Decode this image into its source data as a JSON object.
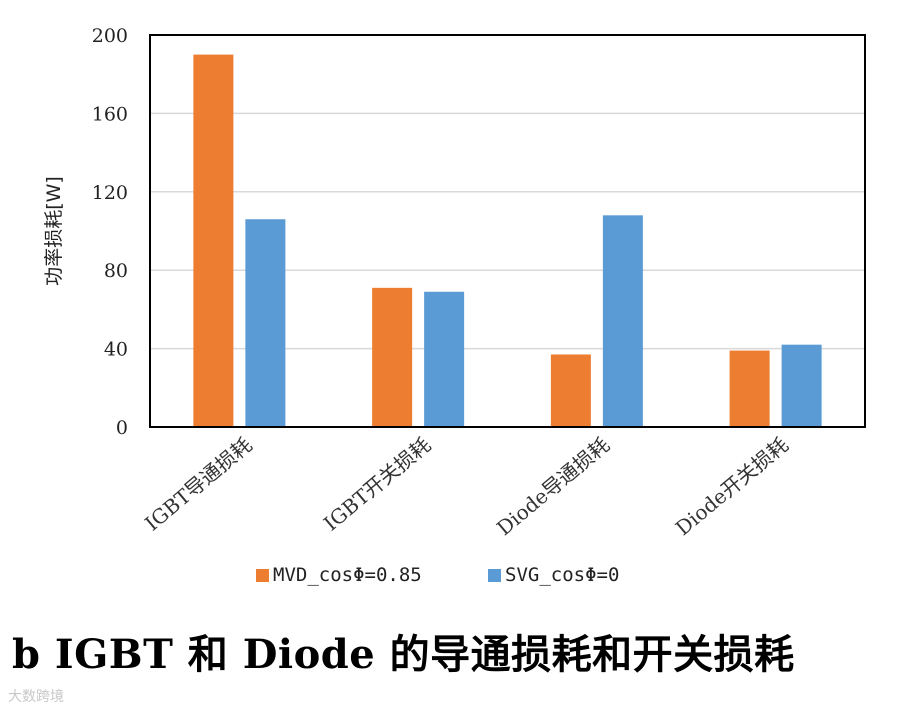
{
  "chart_data": {
    "type": "bar",
    "categories": [
      "IGBT导通损耗",
      "IGBT开关损耗",
      "Diode导通损耗",
      "Diode开关损耗"
    ],
    "series": [
      {
        "name": "MVD_cosΦ=0.85",
        "color": "#ed7d31",
        "values": [
          190,
          71,
          37,
          39
        ]
      },
      {
        "name": "SVG_cosΦ=0",
        "color": "#5b9bd5",
        "values": [
          106,
          69,
          108,
          42
        ]
      }
    ],
    "ylabel": "功率损耗[W]",
    "xlabel": "",
    "ylim": [
      0,
      200
    ],
    "yticks": [
      0,
      40,
      80,
      120,
      160,
      200
    ],
    "grid": true,
    "legend_position": "bottom"
  },
  "caption": "b IGBT 和 Diode 的导通损耗和开关损耗",
  "watermark": "大数跨境"
}
